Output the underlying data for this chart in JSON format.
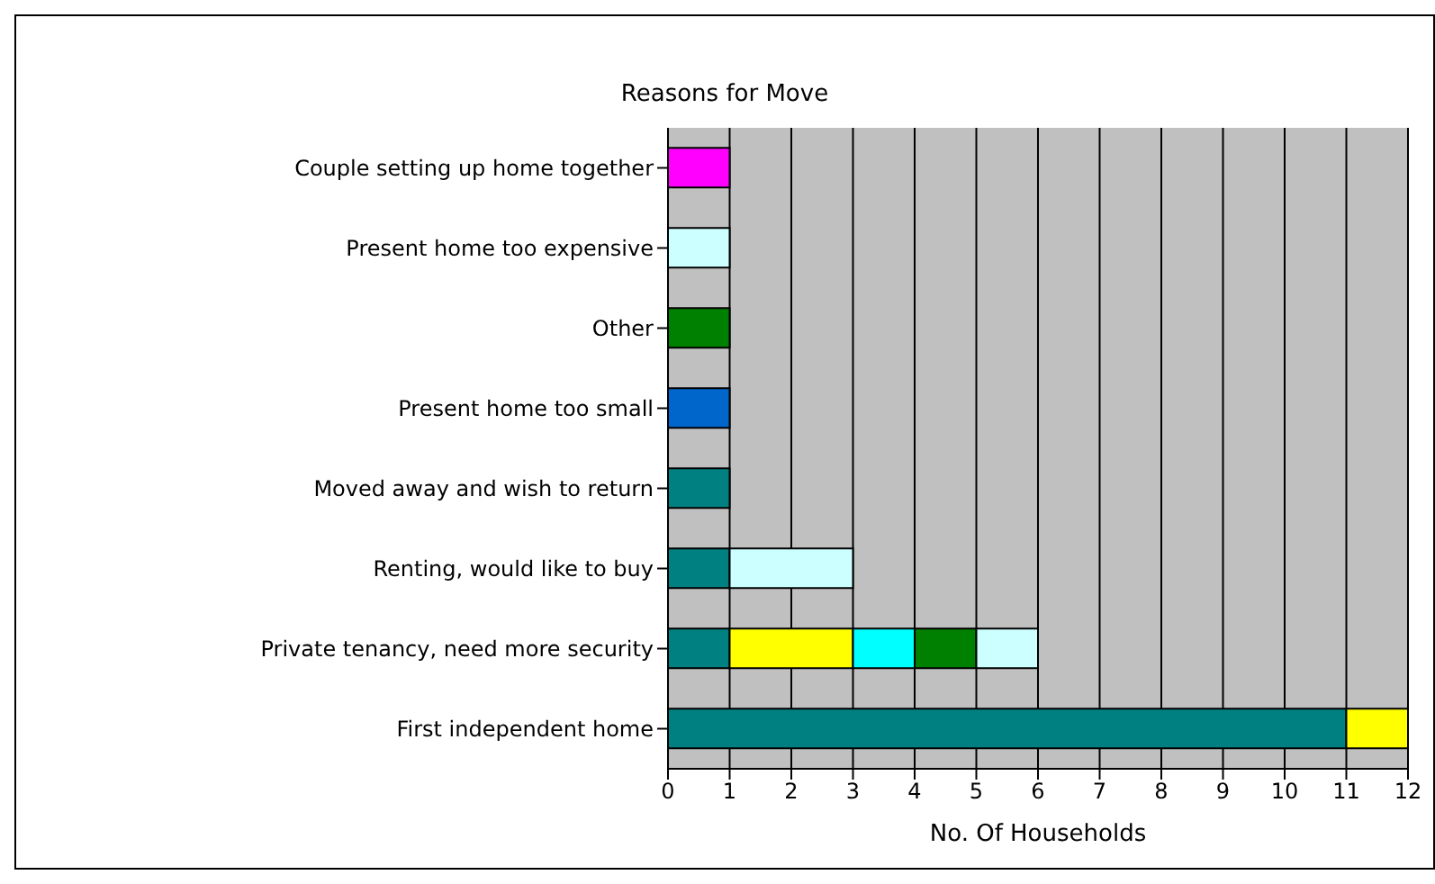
{
  "chart_data": {
    "type": "bar",
    "orientation": "horizontal",
    "stacked": true,
    "title": "Reasons for Move",
    "xlabel": "No. Of Households",
    "categories": [
      "Couple setting up home together",
      "Present home too expensive",
      "Other",
      "Present home too small",
      "Moved away and wish to return",
      "Renting, would like to buy",
      "Private tenancy, need more security",
      "First independent home"
    ],
    "series": [
      {
        "values": [
          1,
          1,
          1,
          1,
          1,
          1,
          1,
          11
        ],
        "colors": [
          "#ff00ff",
          "#ccffff",
          "#008000",
          "#0066cc",
          "#008080",
          "#008080",
          "#008080",
          "#008080"
        ]
      },
      {
        "values": [
          null,
          null,
          null,
          null,
          null,
          2,
          2,
          1
        ],
        "colors": [
          null,
          null,
          null,
          null,
          null,
          "#ccffff",
          "#ffff00",
          "#ffff00"
        ]
      },
      {
        "values": [
          null,
          null,
          null,
          null,
          null,
          null,
          1,
          null
        ],
        "colors": [
          null,
          null,
          null,
          null,
          null,
          null,
          "#00ffff",
          null
        ]
      },
      {
        "values": [
          null,
          null,
          null,
          null,
          null,
          null,
          1,
          null
        ],
        "colors": [
          null,
          null,
          null,
          null,
          null,
          null,
          "#008000",
          null
        ]
      },
      {
        "values": [
          null,
          null,
          null,
          null,
          null,
          null,
          1,
          null
        ],
        "colors": [
          null,
          null,
          null,
          null,
          null,
          null,
          "#ccffff",
          null
        ]
      }
    ],
    "xlim": [
      0,
      12
    ],
    "xticks": [
      0,
      1,
      2,
      3,
      4,
      5,
      6,
      7,
      8,
      9,
      10,
      11,
      12
    ],
    "grid": "x"
  }
}
